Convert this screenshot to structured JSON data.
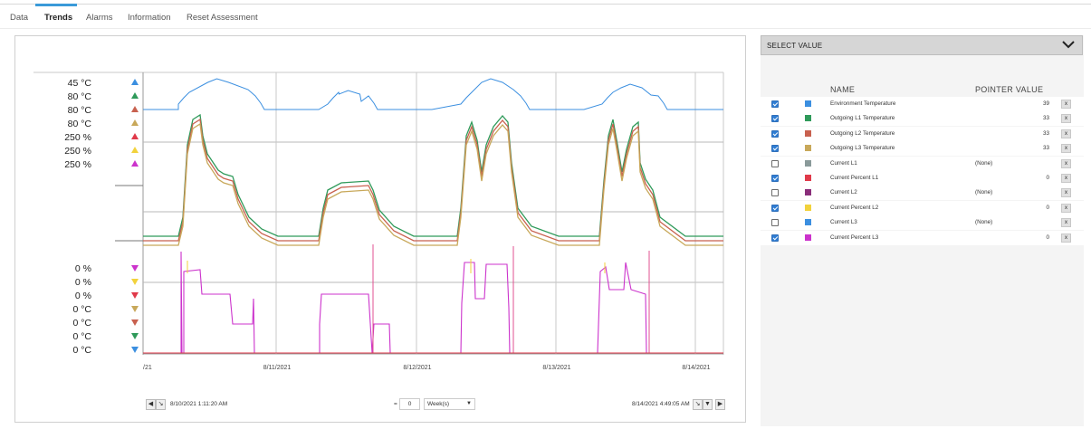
{
  "tabs": [
    {
      "label": "Data",
      "active": false
    },
    {
      "label": "Trends",
      "active": true
    },
    {
      "label": "Alarms",
      "active": false
    },
    {
      "label": "Information",
      "active": false
    },
    {
      "label": "Reset Assessment",
      "active": false
    }
  ],
  "accent_color": "#3a9ad9",
  "chart_data": {
    "type": "line",
    "x_start": "8/10/2021 1:11:20 AM",
    "x_end": "8/14/2021 4:49:05 AM",
    "xtick_labels": [
      "/21",
      "8/11/2021",
      "8/12/2021",
      "8/13/2021",
      "8/14/2021"
    ],
    "grid": true,
    "top_axis_labels": [
      {
        "text": "45 °C",
        "color": "#3b8fe0",
        "marker": "up"
      },
      {
        "text": "80 °C",
        "color": "#2f9a5a",
        "marker": "up"
      },
      {
        "text": "80 °C",
        "color": "#c8614f",
        "marker": "up"
      },
      {
        "text": "80 °C",
        "color": "#c8a85a",
        "marker": "up"
      },
      {
        "text": "250 %",
        "color": "#e03a4a",
        "marker": "up"
      },
      {
        "text": "250 %",
        "color": "#f2d23c",
        "marker": "up"
      },
      {
        "text": "250 %",
        "color": "#cc33cc",
        "marker": "up"
      }
    ],
    "bottom_axis_labels": [
      {
        "text": "0 %",
        "color": "#cc33cc",
        "marker": "down"
      },
      {
        "text": "0 %",
        "color": "#f2d23c",
        "marker": "down"
      },
      {
        "text": "0 %",
        "color": "#e03a4a",
        "marker": "down"
      },
      {
        "text": "0 °C",
        "color": "#c8a85a",
        "marker": "down"
      },
      {
        "text": "0 °C",
        "color": "#c8614f",
        "marker": "down"
      },
      {
        "text": "0 °C",
        "color": "#2f9a5a",
        "marker": "down"
      },
      {
        "text": "0 °C",
        "color": "#3b8fe0",
        "marker": "down"
      }
    ],
    "series": [
      {
        "name": "Environment Temperature",
        "color": "#3b8fe0"
      },
      {
        "name": "Outgoing L1 Temperature",
        "color": "#2f9a5a"
      },
      {
        "name": "Outgoing L2 Temperature",
        "color": "#c8614f"
      },
      {
        "name": "Outgoing L3 Temperature",
        "color": "#c8a85a"
      },
      {
        "name": "Current Percent L1",
        "color": "#e03a4a"
      },
      {
        "name": "Current Percent L2",
        "color": "#f2d23c"
      },
      {
        "name": "Current Percent L3",
        "color": "#cc33cc"
      }
    ]
  },
  "footer": {
    "start_time": "8/10/2021 1:11:20 AM",
    "equals": "=",
    "period_value": "0",
    "period_unit": "Week(s)",
    "end_time": "8/14/2021 4:49:05 AM"
  },
  "select_value": {
    "label": "SELECT VALUE"
  },
  "legend": {
    "name_header": "NAME",
    "pointer_header": "POINTER VALUE",
    "remove_label": "x",
    "rows": [
      {
        "name": "Environment Temperature",
        "checked": true,
        "color": "#3b8fe0",
        "value": "39"
      },
      {
        "name": "Outgoing L1 Temperature",
        "checked": true,
        "color": "#2f9a5a",
        "value": "33"
      },
      {
        "name": "Outgoing L2 Temperature",
        "checked": true,
        "color": "#c8614f",
        "value": "33"
      },
      {
        "name": "Outgoing L3 Temperature",
        "checked": true,
        "color": "#c8a85a",
        "value": "33"
      },
      {
        "name": "Current L1",
        "checked": false,
        "color": "#8a9a9a",
        "value": "(None)"
      },
      {
        "name": "Current Percent L1",
        "checked": true,
        "color": "#e03a4a",
        "value": "0"
      },
      {
        "name": "Current L2",
        "checked": false,
        "color": "#8a2e7a",
        "value": "(None)"
      },
      {
        "name": "Current Percent L2",
        "checked": true,
        "color": "#f2d23c",
        "value": "0"
      },
      {
        "name": "Current L3",
        "checked": false,
        "color": "#3b8fe0",
        "value": "(None)"
      },
      {
        "name": "Current Percent L3",
        "checked": true,
        "color": "#cc33cc",
        "value": "0"
      }
    ]
  }
}
